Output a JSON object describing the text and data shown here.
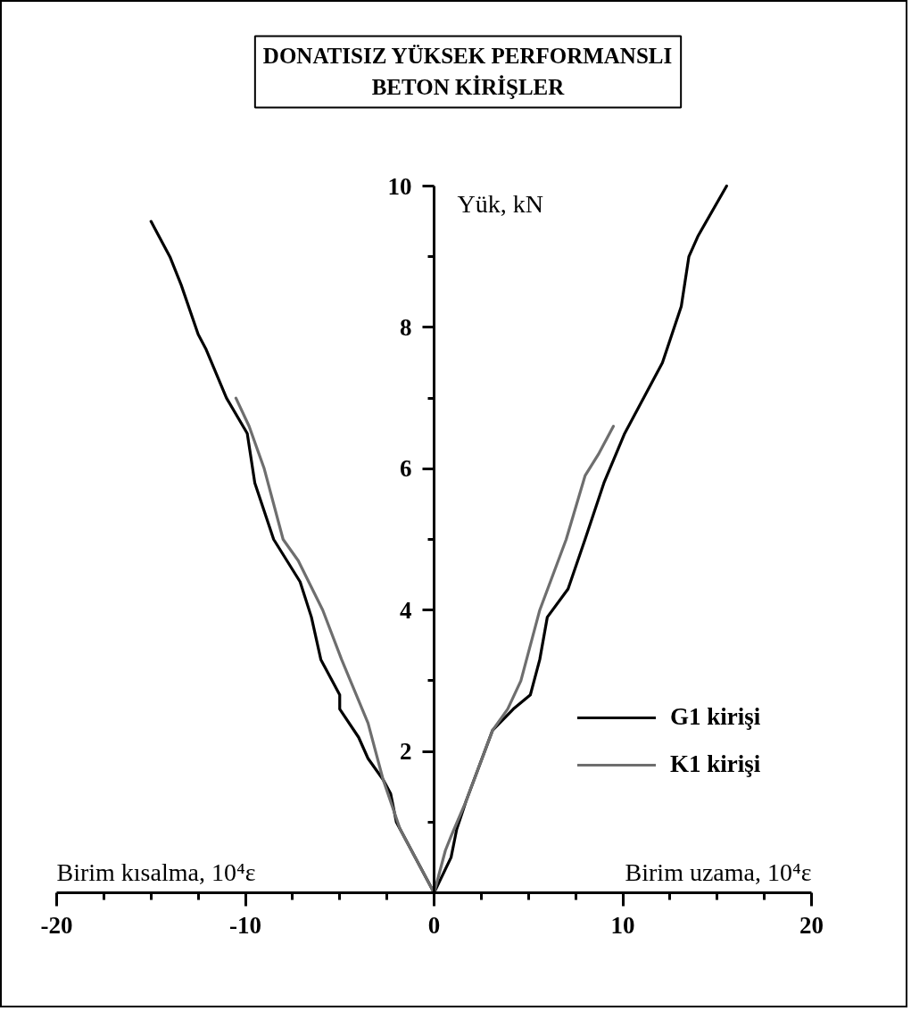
{
  "chart_data": {
    "type": "line",
    "title": "DONATISIZ YÜKSEK PERFORMANSLI\nBETON KİRİŞLER",
    "xlabel": "Birim uzama, 10⁴ε",
    "ylabel": "Yük, kN",
    "annotations": [
      "Birim kısalma, 10⁴ε"
    ],
    "xlim": [
      -20,
      20
    ],
    "ylim": [
      0,
      10
    ],
    "xticks": [
      -20,
      {
        "value": -17.5,
        "label": null
      },
      {
        "value": -15,
        "label": null
      },
      {
        "value": -12.5,
        "label": null
      },
      -10,
      {
        "value": -7.5,
        "label": null
      },
      {
        "value": -5,
        "label": null
      },
      {
        "value": -2.5,
        "label": null
      },
      0,
      {
        "value": 2.5,
        "label": null
      },
      {
        "value": 5,
        "label": null
      },
      {
        "value": 7.5,
        "label": null
      },
      10,
      {
        "value": 12.5,
        "label": null
      },
      {
        "value": 15,
        "label": null
      },
      {
        "value": 17.5,
        "label": null
      },
      20
    ],
    "yticks": [
      {
        "value": 1,
        "label": null
      },
      2,
      {
        "value": 3,
        "label": null
      },
      4,
      {
        "value": 5,
        "label": null
      },
      6,
      {
        "value": 7,
        "label": null
      },
      8,
      {
        "value": 9,
        "label": null
      },
      10
    ],
    "legend": "bottom right",
    "series": [
      {
        "name": "G1 kirişi",
        "color": "#000000",
        "x": [
          -15.0,
          -14.0,
          -13.4,
          -12.5,
          -12.1,
          -11.0,
          -9.9,
          -9.5,
          -8.5,
          -7.1,
          -6.5,
          -6.0,
          -5.0,
          -5.0,
          -4.0,
          -3.5,
          -2.7,
          -2.3,
          -2.0,
          0,
          0.9,
          1.2,
          1.7,
          3.1,
          4.2,
          5.1,
          5.6,
          6.0,
          7.1,
          8.0,
          9.0,
          10.1,
          12.1,
          13.1,
          13.5,
          14.0,
          15.5
        ],
        "values": [
          9.5,
          9.0,
          8.6,
          7.9,
          7.7,
          7.0,
          6.5,
          5.8,
          5.0,
          4.4,
          3.9,
          3.3,
          2.8,
          2.6,
          2.2,
          1.9,
          1.6,
          1.4,
          1.0,
          0,
          0.5,
          0.9,
          1.3,
          2.3,
          2.6,
          2.8,
          3.3,
          3.9,
          4.3,
          5.0,
          5.8,
          6.5,
          7.5,
          8.3,
          9.0,
          9.3,
          10.0
        ]
      },
      {
        "name": "K1 kirişi",
        "color": "#6e6e6e",
        "x": [
          -10.5,
          -9.8,
          -9.0,
          -8.0,
          -7.2,
          -5.9,
          -4.9,
          -3.5,
          -2.7,
          -1.8,
          0,
          0.6,
          0.9,
          1.7,
          3.1,
          3.9,
          4.6,
          5.6,
          7.0,
          8.0,
          8.7,
          9.5
        ],
        "values": [
          7.0,
          6.6,
          6.0,
          5.0,
          4.7,
          4.0,
          3.3,
          2.4,
          1.6,
          0.9,
          0,
          0.6,
          0.8,
          1.3,
          2.3,
          2.6,
          3.0,
          4.0,
          5.0,
          5.9,
          6.2,
          6.6
        ]
      }
    ]
  }
}
